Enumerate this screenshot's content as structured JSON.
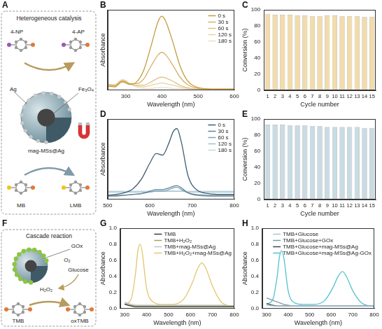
{
  "chart_data": [
    {
      "panel": "B",
      "type": "line",
      "x_label": "Wavelength (nm)",
      "y_label": "Absorbance",
      "x": [
        250,
        270,
        290,
        300,
        310,
        330,
        350,
        370,
        390,
        400,
        410,
        430,
        450,
        470,
        500,
        550,
        600
      ],
      "xlim": [
        250,
        600
      ],
      "xticks": [
        300,
        400,
        500,
        600
      ],
      "ylim": [
        0,
        1
      ],
      "tick_labels": "x",
      "grid": false,
      "legend": "upper right",
      "series": [
        {
          "name": "0 s",
          "color": "#c79a3e",
          "values": [
            0.05,
            0.04,
            0.1,
            0.09,
            0.07,
            0.1,
            0.25,
            0.55,
            0.86,
            0.92,
            0.86,
            0.6,
            0.3,
            0.12,
            0.03,
            0.01,
            0.01
          ]
        },
        {
          "name": "30 s",
          "color": "#d6b062",
          "values": [
            0.06,
            0.05,
            0.11,
            0.1,
            0.08,
            0.08,
            0.14,
            0.3,
            0.44,
            0.47,
            0.44,
            0.31,
            0.16,
            0.07,
            0.02,
            0.01,
            0.01
          ]
        },
        {
          "name": "60 s",
          "color": "#dfc287",
          "values": [
            0.07,
            0.06,
            0.12,
            0.11,
            0.08,
            0.06,
            0.06,
            0.1,
            0.15,
            0.16,
            0.15,
            0.11,
            0.06,
            0.03,
            0.01,
            0.01,
            0.01
          ]
        },
        {
          "name": "120 s",
          "color": "#e8d3a8",
          "values": [
            0.07,
            0.06,
            0.12,
            0.11,
            0.08,
            0.05,
            0.04,
            0.06,
            0.08,
            0.09,
            0.08,
            0.06,
            0.04,
            0.02,
            0.01,
            0.01,
            0.01
          ]
        },
        {
          "name": "180 s",
          "color": "#efdfc2",
          "values": [
            0.07,
            0.07,
            0.13,
            0.12,
            0.08,
            0.04,
            0.02,
            0.02,
            0.03,
            0.03,
            0.03,
            0.02,
            0.02,
            0.01,
            0.01,
            0.01,
            0.01
          ]
        }
      ]
    },
    {
      "panel": "C",
      "type": "bar",
      "x_label": "Cycle number",
      "y_label": "Conversion (%)",
      "categories": [
        "1",
        "2",
        "3",
        "4",
        "5",
        "6",
        "7",
        "8",
        "9",
        "10",
        "11",
        "12",
        "13",
        "14",
        "15"
      ],
      "values": [
        95,
        94,
        94,
        94,
        93,
        93,
        92,
        92,
        93,
        93,
        92,
        92,
        92,
        91,
        91
      ],
      "color": "#f3dcab",
      "ylim": [
        0,
        100
      ],
      "yticks": [
        0,
        20,
        40,
        60,
        80,
        100
      ],
      "grid": false
    },
    {
      "panel": "D",
      "type": "line",
      "x_label": "Wavelength (nm)",
      "y_label": "Absorbance",
      "x": [
        500,
        520,
        540,
        560,
        580,
        600,
        615,
        630,
        645,
        655,
        664,
        675,
        690,
        710,
        740,
        770,
        800
      ],
      "xlim": [
        500,
        800
      ],
      "xticks": [
        500,
        600,
        700,
        800
      ],
      "ylim": [
        0,
        1
      ],
      "tick_labels": "x",
      "grid": false,
      "legend": "upper right",
      "series": [
        {
          "name": "0 s",
          "color": "#3e5f73",
          "values": [
            0.05,
            0.06,
            0.08,
            0.13,
            0.25,
            0.45,
            0.57,
            0.55,
            0.7,
            0.84,
            0.88,
            0.7,
            0.3,
            0.12,
            0.07,
            0.06,
            0.06
          ]
        },
        {
          "name": "30 s",
          "color": "#5d8399",
          "values": [
            0.04,
            0.04,
            0.05,
            0.06,
            0.07,
            0.1,
            0.12,
            0.12,
            0.14,
            0.16,
            0.17,
            0.14,
            0.08,
            0.05,
            0.04,
            0.04,
            0.04
          ]
        },
        {
          "name": "60 s",
          "color": "#7ea3b5",
          "values": [
            0.05,
            0.05,
            0.05,
            0.06,
            0.07,
            0.09,
            0.1,
            0.1,
            0.12,
            0.14,
            0.15,
            0.12,
            0.08,
            0.06,
            0.05,
            0.05,
            0.05
          ]
        },
        {
          "name": "120 s",
          "color": "#a3c0cd",
          "values": [
            0.09,
            0.09,
            0.09,
            0.09,
            0.09,
            0.09,
            0.1,
            0.1,
            0.1,
            0.1,
            0.1,
            0.1,
            0.09,
            0.09,
            0.09,
            0.09,
            0.09
          ]
        },
        {
          "name": "180 s",
          "color": "#c4d8e1",
          "values": [
            0.1,
            0.1,
            0.1,
            0.1,
            0.1,
            0.1,
            0.1,
            0.1,
            0.1,
            0.1,
            0.1,
            0.1,
            0.1,
            0.1,
            0.1,
            0.1,
            0.1
          ]
        }
      ]
    },
    {
      "panel": "E",
      "type": "bar",
      "x_label": "Cycle number",
      "y_label": "Conversion (%)",
      "categories": [
        "1",
        "2",
        "3",
        "4",
        "5",
        "6",
        "7",
        "8",
        "9",
        "10",
        "11",
        "12",
        "13",
        "14",
        "15"
      ],
      "values": [
        93,
        93,
        93,
        92,
        92,
        92,
        91,
        91,
        90,
        90,
        90,
        90,
        90,
        89,
        89
      ],
      "color": "#c9dbe3",
      "ylim": [
        0,
        100
      ],
      "yticks": [
        0,
        20,
        40,
        60,
        80,
        100
      ],
      "grid": false
    },
    {
      "panel": "G",
      "type": "line",
      "x_label": "Wavelength (nm)",
      "y_label": "Absorbance",
      "x": [
        300,
        330,
        350,
        360,
        370,
        380,
        400,
        430,
        470,
        520,
        570,
        610,
        630,
        652,
        670,
        700,
        740,
        800
      ],
      "xlim": [
        280,
        800
      ],
      "xticks": [
        300,
        400,
        500,
        600,
        700,
        800
      ],
      "ylim": [
        0,
        1
      ],
      "yticks": [
        {
          "value": 0,
          "label": "0.0"
        },
        {
          "value": 0.2,
          "label": "0.2"
        },
        {
          "value": 0.4,
          "label": "0.4"
        },
        {
          "value": 0.6,
          "label": "0.6"
        },
        {
          "value": 0.8,
          "label": "0.8"
        },
        {
          "value": 1,
          "label": "1.0"
        }
      ],
      "grid": false,
      "legend": "upper right",
      "series": [
        {
          "name": "TMB",
          "color": "#3a3a3a",
          "values": [
            0.05,
            0.03,
            0.02,
            0.02,
            0.02,
            0.02,
            0.02,
            0.02,
            0.02,
            0.02,
            0.02,
            0.02,
            0.02,
            0.02,
            0.02,
            0.02,
            0.02,
            0.02
          ]
        },
        {
          "name": "TMB+H₂O₂",
          "color": "#a6a35e",
          "values": [
            0.06,
            0.04,
            0.03,
            0.03,
            0.03,
            0.03,
            0.03,
            0.03,
            0.03,
            0.03,
            0.03,
            0.03,
            0.03,
            0.03,
            0.03,
            0.03,
            0.03,
            0.03
          ]
        },
        {
          "name": "TMB+mag-MSs@Ag",
          "color": "#b7c8d3",
          "values": [
            0.08,
            0.05,
            0.04,
            0.04,
            0.04,
            0.04,
            0.04,
            0.04,
            0.04,
            0.04,
            0.04,
            0.04,
            0.04,
            0.04,
            0.04,
            0.04,
            0.04,
            0.03
          ]
        },
        {
          "name": "TMB+H₂O₂+mag-MSs@Ag",
          "color": "#e2c56e",
          "values": [
            0.05,
            0.12,
            0.45,
            0.72,
            0.8,
            0.7,
            0.25,
            0.08,
            0.05,
            0.05,
            0.12,
            0.33,
            0.48,
            0.57,
            0.5,
            0.28,
            0.08,
            0.02
          ]
        }
      ]
    },
    {
      "panel": "H",
      "type": "line",
      "x_label": "Wavelength (nm)",
      "y_label": "Absorbance",
      "x": [
        300,
        330,
        350,
        360,
        370,
        380,
        400,
        430,
        470,
        520,
        570,
        610,
        630,
        652,
        670,
        700,
        740,
        800
      ],
      "xlim": [
        280,
        800
      ],
      "xticks": [
        300,
        400,
        500,
        600,
        700,
        800
      ],
      "ylim": [
        0,
        1
      ],
      "yticks": [
        {
          "value": 0,
          "label": "0.0"
        },
        {
          "value": 0.2,
          "label": "0.2"
        },
        {
          "value": 0.4,
          "label": "0.4"
        },
        {
          "value": 0.6,
          "label": "0.6"
        },
        {
          "value": 0.8,
          "label": "0.8"
        },
        {
          "value": 1,
          "label": "1.0"
        }
      ],
      "grid": false,
      "legend": "upper right",
      "series": [
        {
          "name": "TMB+Glucose",
          "color": "#a9c6d6",
          "values": [
            0.04,
            0.03,
            0.03,
            0.03,
            0.03,
            0.03,
            0.03,
            0.03,
            0.03,
            0.03,
            0.03,
            0.03,
            0.03,
            0.03,
            0.03,
            0.03,
            0.03,
            0.03
          ]
        },
        {
          "name": "TMB+Glucose+GOx",
          "color": "#7f9aa8",
          "values": [
            0.13,
            0.1,
            0.08,
            0.07,
            0.06,
            0.05,
            0.04,
            0.03,
            0.03,
            0.03,
            0.03,
            0.03,
            0.03,
            0.03,
            0.03,
            0.03,
            0.03,
            0.03
          ]
        },
        {
          "name": "TMB+Glucose+mag-MSs@Ag",
          "color": "#444444",
          "values": [
            0.06,
            0.04,
            0.03,
            0.03,
            0.03,
            0.03,
            0.03,
            0.03,
            0.03,
            0.03,
            0.03,
            0.03,
            0.03,
            0.03,
            0.03,
            0.03,
            0.03,
            0.03
          ]
        },
        {
          "name": "TMB+Glucose+mag-MSs@Ag-GOx",
          "color": "#55c2cf",
          "values": [
            0.05,
            0.12,
            0.42,
            0.65,
            0.72,
            0.63,
            0.22,
            0.07,
            0.05,
            0.05,
            0.1,
            0.27,
            0.39,
            0.46,
            0.4,
            0.22,
            0.07,
            0.02
          ]
        }
      ]
    }
  ],
  "diagrams": [
    {
      "panel": "A",
      "title": "Heterogeneous catalysis",
      "reactant": "4-NP",
      "product": "4-AP",
      "metal": "Ag",
      "core": "Fe₃O₄",
      "catalyst": "mag-MSs@Ag",
      "reactant2": "MB",
      "product2": "LMB"
    },
    {
      "panel": "F",
      "title": "Cascade reaction",
      "enzyme": "GOx",
      "oxidant": "O₂",
      "substrate": "Glucose",
      "intermediate": "H₂O₂",
      "reactant": "TMB",
      "product": "oxTMB"
    }
  ]
}
